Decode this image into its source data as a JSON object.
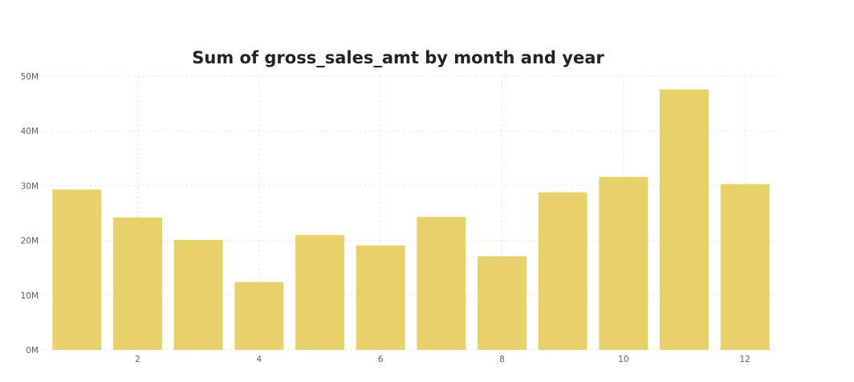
{
  "chart_data": {
    "type": "bar",
    "title": "Sum of gross_sales_amt by month and year",
    "xlabel": "",
    "ylabel": "",
    "categories": [
      1,
      2,
      3,
      4,
      5,
      6,
      7,
      8,
      9,
      10,
      11,
      12
    ],
    "x_tick_labels": [
      "2",
      "4",
      "6",
      "8",
      "10",
      "12"
    ],
    "x_tick_values": [
      2,
      4,
      6,
      8,
      10,
      12
    ],
    "y_tick_labels": [
      "0M",
      "10M",
      "20M",
      "30M",
      "40M",
      "50M"
    ],
    "y_tick_values": [
      0,
      10000000,
      20000000,
      30000000,
      40000000,
      50000000
    ],
    "series": [
      {
        "values": [
          29300000,
          24200000,
          20100000,
          12400000,
          21000000,
          19100000,
          24300000,
          17100000,
          28800000,
          31600000,
          47600000,
          30300000
        ]
      }
    ],
    "ylim": [
      0,
      50000000
    ],
    "grid": true,
    "bar_color": "#e8d16a"
  }
}
